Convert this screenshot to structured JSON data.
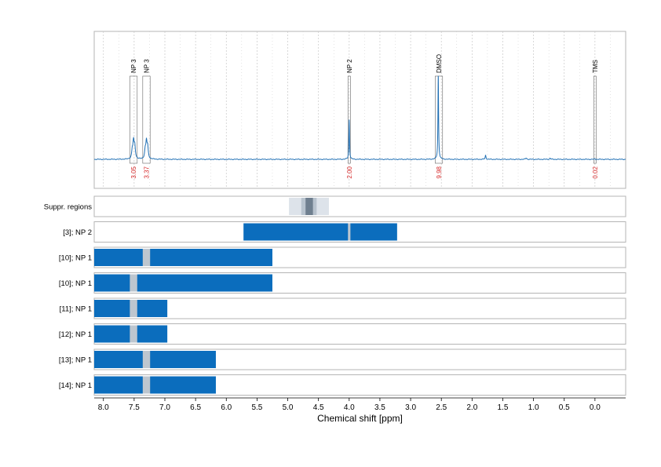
{
  "chart_data": {
    "type": "line",
    "xlabel": "Chemical shift [ppm]",
    "x_ticks": [
      "8.0",
      "7.5",
      "7.0",
      "6.5",
      "6.0",
      "5.5",
      "5.0",
      "4.5",
      "4.0",
      "3.5",
      "3.0",
      "2.5",
      "2.0",
      "1.5",
      "1.0",
      "0.5",
      "0.0"
    ],
    "xlim": [
      8.15,
      -0.5
    ],
    "spectrum": {
      "baseline": 0.0,
      "peaks": [
        {
          "ppm": 7.51,
          "height": 0.12,
          "width": 0.012
        },
        {
          "ppm": 7.49,
          "height": 0.09,
          "width": 0.012
        },
        {
          "ppm": 7.53,
          "height": 0.06,
          "width": 0.012
        },
        {
          "ppm": 7.3,
          "height": 0.12,
          "width": 0.012
        },
        {
          "ppm": 7.28,
          "height": 0.08,
          "width": 0.012
        },
        {
          "ppm": 7.32,
          "height": 0.06,
          "width": 0.012
        },
        {
          "ppm": 4.0,
          "height": 0.3,
          "width": 0.006
        },
        {
          "ppm": 2.55,
          "height": 0.63,
          "width": 0.006
        },
        {
          "ppm": 1.78,
          "height": 0.03,
          "width": 0.008
        },
        {
          "ppm": 1.12,
          "height": 0.01,
          "width": 0.01
        },
        {
          "ppm": 0.73,
          "height": 0.008,
          "width": 0.01
        },
        {
          "ppm": 0.0,
          "height": 0.004,
          "width": 0.006
        }
      ]
    },
    "annotations": [
      {
        "label": "NP 3",
        "from": 7.57,
        "to": 7.45,
        "integral": "3.05"
      },
      {
        "label": "NP 3",
        "from": 7.36,
        "to": 7.24,
        "integral": "3.37"
      },
      {
        "label": "NP 2",
        "from": 4.02,
        "to": 3.98,
        "integral": "2.00"
      },
      {
        "label": "DMSO",
        "from": 2.6,
        "to": 2.48,
        "integral": "9.98"
      },
      {
        "label": "TMS",
        "from": 0.02,
        "to": -0.02,
        "integral": "0.02"
      }
    ],
    "suppression": {
      "label": "Suppr. regions",
      "bands": [
        {
          "from": 4.98,
          "to": 4.33,
          "shade": "#dde3ea"
        },
        {
          "from": 4.78,
          "to": 4.53,
          "shade": "#b8c3ce"
        },
        {
          "from": 4.71,
          "to": 4.59,
          "shade": "#6f7f8f"
        }
      ]
    },
    "rows": [
      {
        "label": "[3]; NP 2",
        "from": 5.72,
        "to": 3.22,
        "gaps": [
          {
            "from": 4.02,
            "to": 3.98
          }
        ]
      },
      {
        "label": "[10]; NP 1",
        "from": 8.15,
        "to": 5.25,
        "gaps": [
          {
            "from": 7.36,
            "to": 7.24
          }
        ]
      },
      {
        "label": "[10]; NP 1",
        "from": 8.15,
        "to": 5.25,
        "gaps": [
          {
            "from": 7.57,
            "to": 7.45
          }
        ]
      },
      {
        "label": "[11]; NP 1",
        "from": 8.15,
        "to": 6.96,
        "gaps": [
          {
            "from": 7.57,
            "to": 7.45
          }
        ]
      },
      {
        "label": "[12]; NP 1",
        "from": 8.15,
        "to": 6.96,
        "gaps": [
          {
            "from": 7.57,
            "to": 7.45
          }
        ]
      },
      {
        "label": "[13]; NP 1",
        "from": 8.15,
        "to": 6.17,
        "gaps": [
          {
            "from": 7.36,
            "to": 7.24
          }
        ]
      },
      {
        "label": "[14]; NP 1",
        "from": 8.15,
        "to": 6.17,
        "gaps": [
          {
            "from": 7.36,
            "to": 7.24
          }
        ]
      }
    ],
    "colors": {
      "line": "#1f6fb4",
      "bar": "#0b6dbd",
      "gap": "#bdc6cf",
      "integral": "#d62728",
      "frame": "#b5b5b5",
      "grid": "#c8c8c8"
    }
  }
}
